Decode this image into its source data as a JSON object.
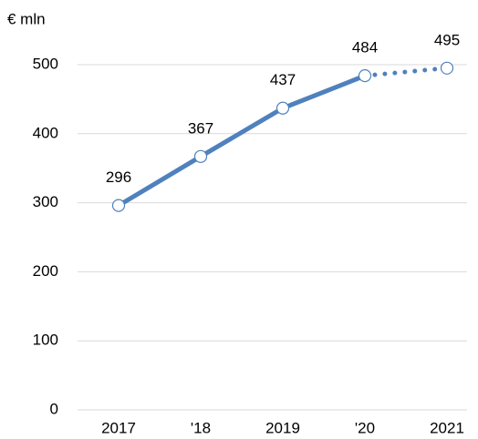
{
  "chart_data": {
    "type": "line",
    "y_axis_label": "€ mln",
    "categories": [
      "2017",
      "'18",
      "2019",
      "'20",
      "2021"
    ],
    "values": [
      296,
      367,
      437,
      484,
      495
    ],
    "color": "#4f81bd",
    "segment_styles": [
      "solid",
      "solid",
      "solid",
      "dotted"
    ],
    "ylim": [
      0,
      500
    ],
    "yticks": [
      0,
      100,
      200,
      300,
      400,
      500
    ],
    "grid": true
  }
}
